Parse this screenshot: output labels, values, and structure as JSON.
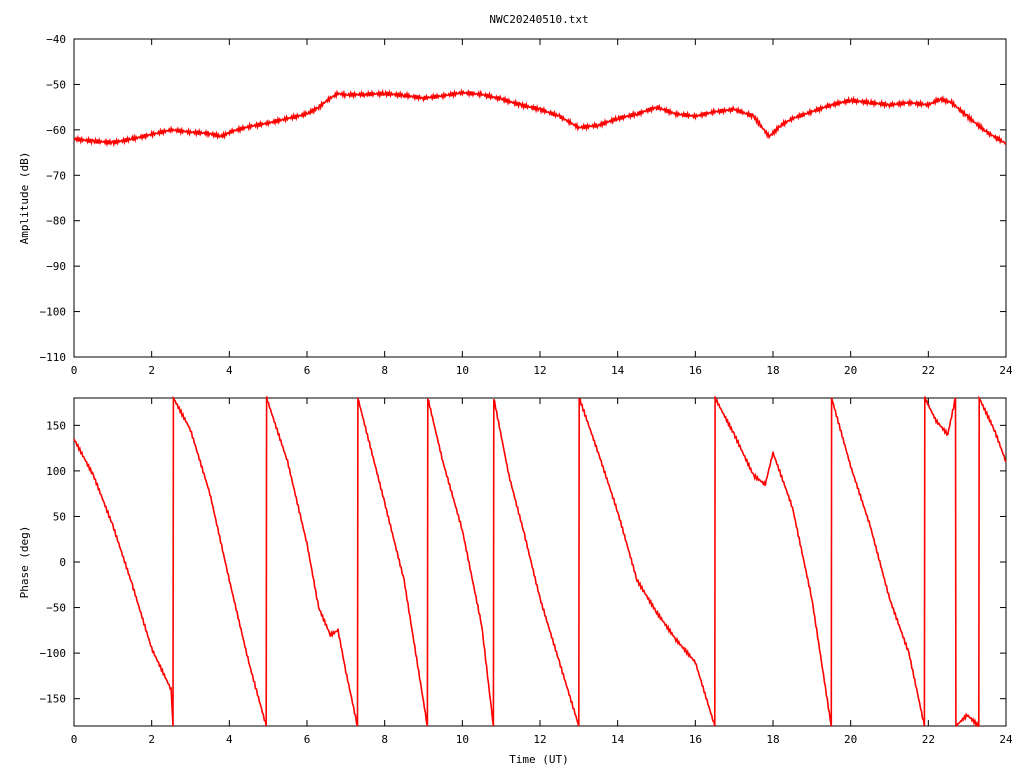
{
  "title": "NWC20240510.txt",
  "colors": {
    "series": "#ff0000",
    "axes": "#000000",
    "background": "#ffffff"
  },
  "chart_data": [
    {
      "type": "line",
      "title": "NWC20240510.txt",
      "xlabel": "",
      "ylabel": "Amplitude (dB)",
      "xlim": [
        0,
        24
      ],
      "ylim": [
        -110,
        -40
      ],
      "xticks": [
        "0",
        "2",
        "4",
        "6",
        "8",
        "10",
        "12",
        "14",
        "16",
        "18",
        "20",
        "22",
        "24"
      ],
      "yticks": [
        "-110",
        "-100",
        "-90",
        "-80",
        "-70",
        "-60",
        "-50",
        "-40"
      ],
      "grid": false,
      "series": [
        {
          "x": [
            0,
            0.5,
            1.0,
            1.5,
            2.0,
            2.5,
            3.0,
            3.5,
            3.8,
            4.0,
            4.5,
            5.0,
            5.5,
            6.0,
            6.3,
            6.6,
            6.8,
            7.0,
            7.5,
            8.0,
            8.5,
            9.0,
            9.5,
            10.0,
            10.5,
            11.0,
            11.5,
            12.0,
            12.5,
            12.8,
            13.0,
            13.5,
            14.0,
            14.5,
            15.0,
            15.5,
            16.0,
            16.5,
            17.0,
            17.5,
            17.9,
            18.2,
            18.5,
            19.0,
            19.5,
            20.0,
            20.5,
            21.0,
            21.5,
            22.0,
            22.3,
            22.6,
            23.0,
            23.5,
            24.0
          ],
          "values": [
            -62,
            -62.5,
            -62.8,
            -62,
            -61,
            -60,
            -60.5,
            -60.8,
            -61.5,
            -60.5,
            -59.3,
            -58.5,
            -57.5,
            -56.5,
            -55,
            -53,
            -52,
            -52.3,
            -52.2,
            -52,
            -52.4,
            -53,
            -52.5,
            -51.8,
            -52.2,
            -53.2,
            -54.5,
            -55.5,
            -57,
            -58.5,
            -59.5,
            -59,
            -57.5,
            -56.5,
            -55,
            -56.5,
            -57,
            -56,
            -55.5,
            -57,
            -61.5,
            -59,
            -57.5,
            -56,
            -54.5,
            -53.5,
            -54,
            -54.5,
            -54,
            -54.5,
            -53.2,
            -54,
            -57,
            -60.5,
            -63
          ]
        }
      ]
    },
    {
      "type": "line",
      "title": "",
      "xlabel": "Time (UT)",
      "ylabel": "Phase (deg)",
      "xlim": [
        0,
        24
      ],
      "ylim": [
        -180,
        180
      ],
      "xticks": [
        "0",
        "2",
        "4",
        "6",
        "8",
        "10",
        "12",
        "14",
        "16",
        "18",
        "20",
        "22",
        "24"
      ],
      "yticks": [
        "-150",
        "-100",
        "-50",
        "0",
        "50",
        "100",
        "150"
      ],
      "grid": false,
      "series": [
        {
          "x": [
            0,
            0.5,
            1.0,
            1.5,
            2.0,
            2.5,
            2.55,
            2.56,
            3.0,
            3.5,
            4.0,
            4.5,
            4.95,
            4.96,
            5.5,
            6.0,
            6.3,
            6.6,
            6.8,
            7.0,
            7.3,
            7.31,
            8.0,
            8.5,
            9.1,
            9.11,
            9.5,
            10.0,
            10.5,
            10.8,
            10.81,
            11.2,
            11.6,
            12.0,
            12.5,
            13.0,
            13.01,
            13.5,
            14.0,
            14.5,
            15.0,
            15.5,
            16.0,
            16.5,
            16.51,
            17.0,
            17.5,
            17.8,
            18.0,
            18.5,
            19.0,
            19.5,
            19.51,
            20.0,
            20.5,
            21.0,
            21.5,
            21.9,
            21.91,
            22.2,
            22.5,
            22.7,
            22.71,
            23.0,
            23.3,
            23.31,
            23.7,
            24.0
          ],
          "values": [
            135,
            95,
            40,
            -25,
            -95,
            -140,
            -180,
            180,
            145,
            75,
            -20,
            -110,
            -180,
            180,
            110,
            20,
            -50,
            -80,
            -75,
            -120,
            -180,
            180,
            65,
            -20,
            -180,
            180,
            110,
            35,
            -70,
            -180,
            180,
            95,
            30,
            -40,
            -110,
            -180,
            180,
            120,
            55,
            -20,
            -55,
            -85,
            -110,
            -180,
            180,
            140,
            95,
            85,
            120,
            60,
            -40,
            -180,
            180,
            105,
            40,
            -40,
            -100,
            -180,
            180,
            155,
            140,
            180,
            -180,
            -168,
            -180,
            180,
            145,
            110
          ]
        }
      ]
    }
  ]
}
